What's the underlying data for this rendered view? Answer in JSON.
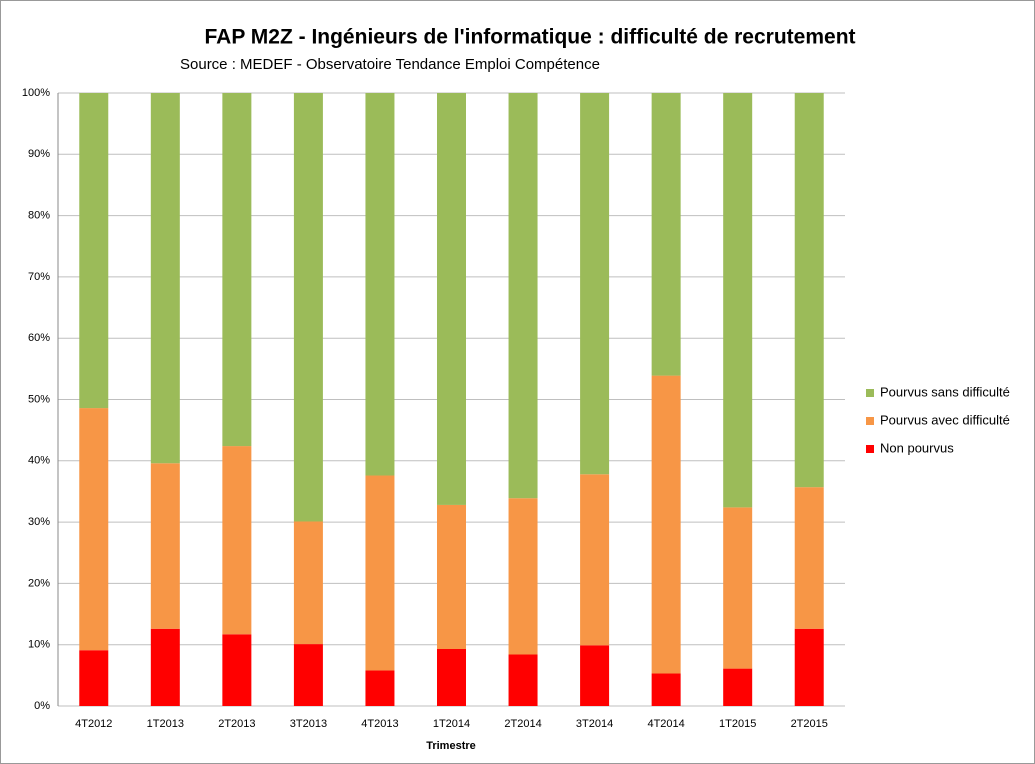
{
  "chart_data": {
    "type": "stacked_bar",
    "title": "FAP M2Z  - Ingénieurs de l'informatique : difficulté de recrutement",
    "subtitle": "Source : MEDEF - Observatoire Tendance Emploi Compétence",
    "x_label": "Trimestre",
    "categories": [
      "4T2012",
      "1T2013",
      "2T2013",
      "3T2013",
      "4T2013",
      "1T2014",
      "2T2014",
      "3T2014",
      "4T2014",
      "1T2015",
      "2T2015"
    ],
    "series": [
      {
        "name": "Non pourvus",
        "color": "#ff0000",
        "values": [
          9.1,
          12.6,
          11.7,
          10.1,
          5.8,
          9.3,
          8.4,
          9.9,
          5.3,
          6.1,
          12.6
        ]
      },
      {
        "name": "Pourvus avec difficulté",
        "color": "#f79646",
        "values": [
          39.5,
          27.0,
          30.7,
          20.0,
          31.8,
          23.5,
          25.5,
          27.9,
          48.6,
          26.3,
          23.1
        ]
      },
      {
        "name": "Pourvus sans difficulté",
        "color": "#9bbb59",
        "values": [
          51.4,
          60.4,
          57.6,
          69.9,
          62.4,
          67.2,
          66.1,
          62.2,
          46.1,
          67.6,
          64.3
        ]
      }
    ],
    "ylim": [
      0,
      100
    ],
    "yticks": [
      {
        "value": 0,
        "label": "0%"
      },
      {
        "value": 10,
        "label": "10%"
      },
      {
        "value": 20,
        "label": "20%"
      },
      {
        "value": 30,
        "label": "30%"
      },
      {
        "value": 40,
        "label": "40%"
      },
      {
        "value": 50,
        "label": "50%"
      },
      {
        "value": 60,
        "label": "60%"
      },
      {
        "value": 70,
        "label": "70%"
      },
      {
        "value": 80,
        "label": "80%"
      },
      {
        "value": 90,
        "label": "90%"
      },
      {
        "value": 100,
        "label": "100%"
      }
    ],
    "grid": true,
    "legend": "right"
  }
}
